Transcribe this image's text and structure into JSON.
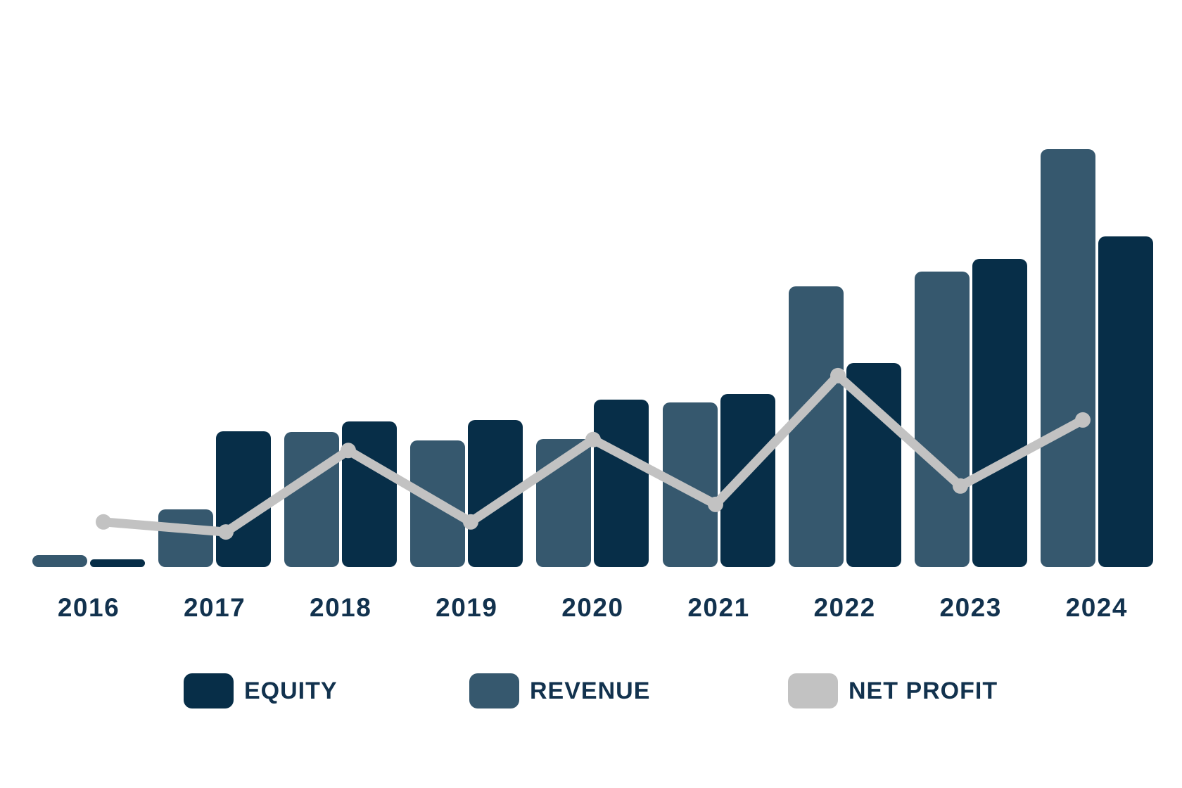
{
  "chart_data": {
    "type": "bar",
    "subtype": "grouped-bar-with-line-overlay",
    "title": "",
    "xlabel": "",
    "ylabel": "",
    "categories": [
      "2016",
      "2017",
      "2018",
      "2019",
      "2020",
      "2021",
      "2022",
      "2023",
      "2024"
    ],
    "series": [
      {
        "name": "REVENUE",
        "type": "bar",
        "color": "#36586e",
        "values": [
          2.9,
          13.8,
          32.3,
          30.3,
          30.6,
          39.4,
          67.2,
          70.7,
          100.0
        ]
      },
      {
        "name": "EQUITY",
        "type": "bar",
        "color": "#072e48",
        "values": [
          1.8,
          32.5,
          34.8,
          35.2,
          40.1,
          41.4,
          48.8,
          73.7,
          79.1
        ]
      },
      {
        "name": "NET PROFIT",
        "type": "line",
        "color": "#c2c2c2",
        "values": [
          10.8,
          8.4,
          27.9,
          10.8,
          30.5,
          15.0,
          45.8,
          19.4,
          35.2
        ]
      }
    ],
    "units": "relative units, 100 = tallest bar (2024 revenue)",
    "ylim": [
      0,
      100
    ],
    "bar_order_within_group": [
      "REVENUE",
      "EQUITY"
    ],
    "gridlines": false,
    "y_axis_visible": false,
    "legend_position": "bottom"
  },
  "x_axis": {
    "labels": [
      "2016",
      "2017",
      "2018",
      "2019",
      "2020",
      "2021",
      "2022",
      "2023",
      "2024"
    ]
  },
  "legend": {
    "items": [
      {
        "label": "EQUITY",
        "color": "#072e48"
      },
      {
        "label": "REVENUE",
        "color": "#36586e"
      },
      {
        "label": "NET PROFIT",
        "color": "#c2c2c2"
      }
    ]
  },
  "colors": {
    "background": "#ffffff",
    "equity_bar": "#072e48",
    "revenue_bar": "#36586e",
    "net_profit_line": "#c2c2c2",
    "label_text": "#12324e"
  }
}
